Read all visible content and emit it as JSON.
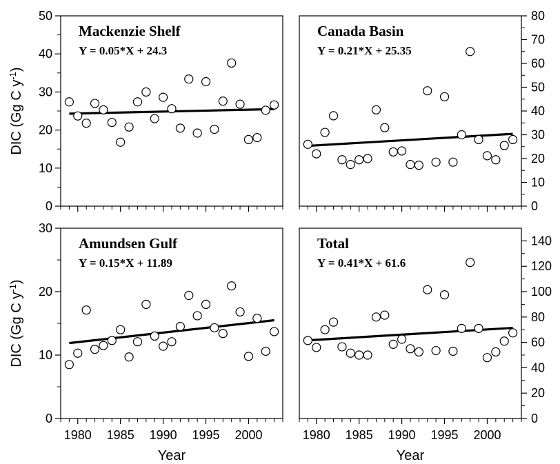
{
  "chart_data": [
    {
      "type": "scatter",
      "title": "Mackenzie Shelf",
      "equation": "Y = 0.05*X + 24.3",
      "ylabel": "DIC (Gg C y",
      "ylabel_sup": "-1",
      "ylabel_end": ")",
      "xlabel": "",
      "xlim": [
        1978,
        2004
      ],
      "ylim": [
        0,
        50
      ],
      "y_axis_side": "left",
      "yticks": [
        0,
        10,
        20,
        30,
        40,
        50
      ],
      "xticks": [],
      "x": [
        1979,
        1980,
        1981,
        1982,
        1983,
        1984,
        1985,
        1986,
        1987,
        1988,
        1989,
        1990,
        1991,
        1992,
        1993,
        1994,
        1995,
        1996,
        1997,
        1998,
        1999,
        2000,
        2001,
        2002,
        2003
      ],
      "y": [
        27.4,
        23.7,
        21.8,
        27.0,
        25.3,
        22.0,
        16.8,
        20.8,
        27.4,
        30.0,
        23.0,
        28.6,
        25.6,
        20.5,
        33.4,
        19.2,
        32.7,
        20.2,
        27.6,
        37.6,
        26.8,
        17.5,
        18.0,
        25.2,
        26.6
      ],
      "fit": {
        "slope": 0.05,
        "intercept": 24.3,
        "x0": 1979,
        "x_range": [
          1979,
          2003
        ]
      }
    },
    {
      "type": "scatter",
      "title": "Canada Basin",
      "equation": "Y = 0.21*X + 25.35",
      "ylabel": "",
      "xlabel": "",
      "xlim": [
        1978,
        2004
      ],
      "ylim": [
        0,
        80
      ],
      "y_axis_side": "right",
      "yticks": [
        0,
        10,
        20,
        30,
        40,
        50,
        60,
        70,
        80
      ],
      "xticks": [],
      "x": [
        1979,
        1980,
        1981,
        1982,
        1983,
        1984,
        1985,
        1986,
        1987,
        1988,
        1989,
        1990,
        1991,
        1992,
        1993,
        1994,
        1995,
        1996,
        1997,
        1998,
        1999,
        2000,
        2001,
        2002,
        2003
      ],
      "y": [
        26.0,
        22.0,
        31.0,
        38.0,
        19.5,
        17.5,
        19.5,
        20.0,
        40.5,
        33.0,
        22.8,
        23.2,
        17.5,
        17.2,
        48.5,
        18.5,
        46.0,
        18.5,
        30.0,
        65.0,
        28.0,
        21.2,
        19.5,
        25.5,
        28.0
      ],
      "fit": {
        "slope": 0.21,
        "intercept": 25.35,
        "x0": 1979,
        "x_range": [
          1979,
          2003
        ]
      }
    },
    {
      "type": "scatter",
      "title": "Amundsen Gulf",
      "equation": "Y = 0.15*X + 11.89",
      "ylabel": "DIC (Gg C y",
      "ylabel_sup": "-1",
      "ylabel_end": ")",
      "xlabel": "Year",
      "xlim": [
        1978,
        2004
      ],
      "ylim": [
        0,
        30
      ],
      "y_axis_side": "left",
      "yticks": [
        0,
        10,
        20,
        30
      ],
      "xticks": [
        1980,
        1985,
        1990,
        1995,
        2000
      ],
      "x": [
        1979,
        1980,
        1981,
        1982,
        1983,
        1984,
        1985,
        1986,
        1987,
        1988,
        1989,
        1990,
        1991,
        1992,
        1993,
        1994,
        1995,
        1996,
        1997,
        1998,
        1999,
        2000,
        2001,
        2002,
        2003
      ],
      "y": [
        8.5,
        10.3,
        17.1,
        10.9,
        11.5,
        12.3,
        14.0,
        9.7,
        12.1,
        18.0,
        13.0,
        11.4,
        12.1,
        14.5,
        19.4,
        16.2,
        18.0,
        14.3,
        13.4,
        20.9,
        16.8,
        9.8,
        15.8,
        10.6,
        13.7
      ],
      "fit": {
        "slope": 0.15,
        "intercept": 11.89,
        "x0": 1979,
        "x_range": [
          1979,
          2003
        ]
      }
    },
    {
      "type": "scatter",
      "title": "Total",
      "equation": "Y = 0.41*X + 61.6",
      "ylabel": "",
      "xlabel": "Year",
      "xlim": [
        1978,
        2004
      ],
      "ylim": [
        0,
        150
      ],
      "y_axis_side": "right",
      "yticks": [
        0,
        20,
        40,
        60,
        80,
        100,
        120,
        140
      ],
      "xticks": [
        1980,
        1985,
        1990,
        1995,
        2000
      ],
      "x": [
        1979,
        1980,
        1981,
        1982,
        1983,
        1984,
        1985,
        1986,
        1987,
        1988,
        1989,
        1990,
        1991,
        1992,
        1993,
        1994,
        1995,
        1996,
        1997,
        1998,
        1999,
        2000,
        2001,
        2002,
        2003
      ],
      "y": [
        61.5,
        56.0,
        70.0,
        76.0,
        56.5,
        51.5,
        50.0,
        50.0,
        80.0,
        81.5,
        58.5,
        62.5,
        55.0,
        52.5,
        101.5,
        53.5,
        97.5,
        53.0,
        71.0,
        123.0,
        71.0,
        48.0,
        52.5,
        61.0,
        67.5
      ],
      "fit": {
        "slope": 0.41,
        "intercept": 61.6,
        "x0": 1979,
        "x_range": [
          1979,
          2003
        ]
      }
    }
  ]
}
